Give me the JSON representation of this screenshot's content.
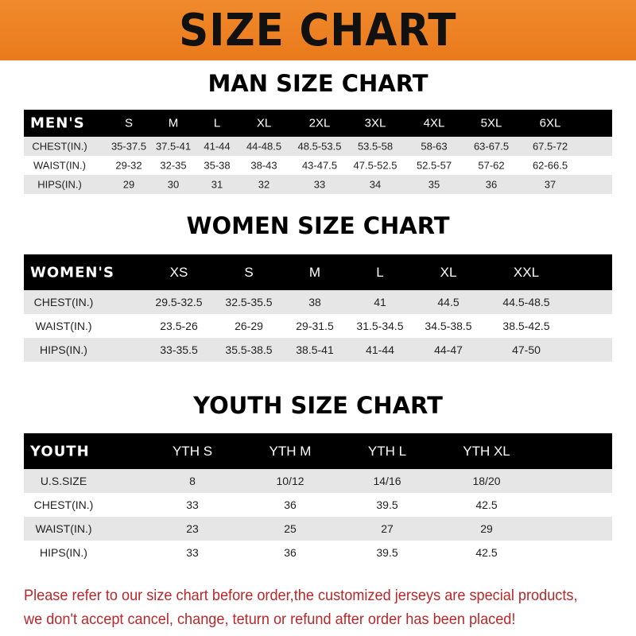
{
  "banner": "SIZE CHART",
  "men": {
    "title": "MAN SIZE CHART",
    "header": [
      "MEN'S",
      "S",
      "M",
      "L",
      "XL",
      "2XL",
      "3XL",
      "4XL",
      "5XL",
      "6XL"
    ],
    "rows": [
      [
        "CHEST(IN.)",
        "35-37.5",
        "37.5-41",
        "41-44",
        "44-48.5",
        "48.5-53.5",
        "53.5-58",
        "58-63",
        "63-67.5",
        "67.5-72"
      ],
      [
        "WAIST(IN.)",
        "29-32",
        "32-35",
        "35-38",
        "38-43",
        "43-47.5",
        "47.5-52.5",
        "52.5-57",
        "57-62",
        "62-66.5"
      ],
      [
        "HIPS(IN.)",
        "29",
        "30",
        "31",
        "32",
        "33",
        "34",
        "35",
        "36",
        "37"
      ]
    ]
  },
  "women": {
    "title": "WOMEN SIZE CHART",
    "header": [
      "WOMEN'S",
      "XS",
      "S",
      "M",
      "L",
      "XL",
      "XXL"
    ],
    "rows": [
      [
        "CHEST(IN.)",
        "29.5-32.5",
        "32.5-35.5",
        "38",
        "41",
        "44.5",
        "44.5-48.5"
      ],
      [
        "WAIST(IN.)",
        "23.5-26",
        "26-29",
        "29-31.5",
        "31.5-34.5",
        "34.5-38.5",
        "38.5-42.5"
      ],
      [
        "HIPS(IN.)",
        "33-35.5",
        "35.5-38.5",
        "38.5-41",
        "41-44",
        "44-47",
        "47-50"
      ]
    ]
  },
  "youth": {
    "title": "YOUTH SIZE CHART",
    "header": [
      "YOUTH",
      "YTH S",
      "YTH M",
      "YTH L",
      "YTH XL"
    ],
    "rows": [
      [
        "U.S.SIZE",
        "8",
        "10/12",
        "14/16",
        "18/20"
      ],
      [
        "CHEST(IN.)",
        "33",
        "36",
        "39.5",
        "42.5"
      ],
      [
        "WAIST(IN.)",
        "23",
        "25",
        "27",
        "29"
      ],
      [
        "HIPS(IN.)",
        "33",
        "36",
        "39.5",
        "42.5"
      ]
    ]
  },
  "note": {
    "line1": "Please refer to our size chart before order,the customized jerseys are special products,",
    "line2": "we don't accept cancel, change, teturn or refund after order has been placed!"
  }
}
